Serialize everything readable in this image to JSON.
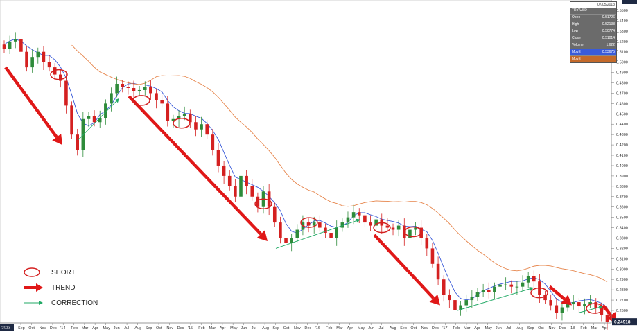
{
  "chart_data": {
    "type": "candlestick",
    "title": "",
    "pair": "TRY/USD",
    "ylim": [
      0.245,
      0.56
    ],
    "y_ticks": [
      "0.5500",
      "0.5400",
      "0.5300",
      "0.5200",
      "0.5100",
      "0.5000",
      "0.4900",
      "0.4800",
      "0.4700",
      "0.4600",
      "0.4500",
      "0.4400",
      "0.4300",
      "0.4200",
      "0.4100",
      "0.4000",
      "0.3900",
      "0.3800",
      "0.3700",
      "0.3600",
      "0.3500",
      "0.3400",
      "0.3300",
      "0.3200",
      "0.3100",
      "0.3000",
      "0.2900",
      "0.2800",
      "0.2700",
      "0.2600"
    ],
    "x_ticks": [
      "Sep",
      "Oct",
      "Nov",
      "Dec",
      "'14",
      "Feb",
      "Mar",
      "Apr",
      "May",
      "Jun",
      "Jul",
      "Aug",
      "Sep",
      "Oct",
      "Nov",
      "Dec",
      "'15",
      "Feb",
      "Mar",
      "Apr",
      "May",
      "Jun",
      "Jul",
      "Aug",
      "Sep",
      "Oct",
      "Nov",
      "Dec",
      "'16",
      "Feb",
      "Mar",
      "Apr",
      "May",
      "Jun",
      "Jul",
      "Aug",
      "Sep",
      "Oct",
      "Nov",
      "Dec",
      "'17",
      "Feb",
      "Mar",
      "Apr",
      "May",
      "Jun",
      "Jul",
      "Aug",
      "Sep",
      "Oct",
      "Nov",
      "Dec",
      "'18",
      "Feb",
      "Mar",
      "Apr"
    ],
    "x_left_label": "/2013",
    "current_price_label": "0.24918",
    "close_series": [
      0.513,
      0.52,
      0.522,
      0.51,
      0.495,
      0.505,
      0.51,
      0.5,
      0.495,
      0.488,
      0.482,
      0.458,
      0.43,
      0.415,
      0.445,
      0.448,
      0.442,
      0.446,
      0.46,
      0.47,
      0.479,
      0.476,
      0.475,
      0.472,
      0.473,
      0.476,
      0.47,
      0.463,
      0.46,
      0.443,
      0.445,
      0.448,
      0.45,
      0.442,
      0.435,
      0.44,
      0.43,
      0.415,
      0.4,
      0.39,
      0.38,
      0.37,
      0.39,
      0.38,
      0.37,
      0.36,
      0.375,
      0.36,
      0.345,
      0.33,
      0.325,
      0.33,
      0.338,
      0.345,
      0.342,
      0.345,
      0.34,
      0.335,
      0.33,
      0.34,
      0.345,
      0.35,
      0.355,
      0.352,
      0.345,
      0.342,
      0.348,
      0.342,
      0.34,
      0.338,
      0.342,
      0.33,
      0.338,
      0.34,
      0.33,
      0.32,
      0.305,
      0.29,
      0.275,
      0.27,
      0.26,
      0.265,
      0.27,
      0.273,
      0.278,
      0.28,
      0.278,
      0.283,
      0.285,
      0.285,
      0.283,
      0.283,
      0.287,
      0.293,
      0.288,
      0.275,
      0.27,
      0.265,
      0.258,
      0.263,
      0.266,
      0.268,
      0.264,
      0.266,
      0.268,
      0.262,
      0.256,
      0.249
    ]
  },
  "info_panel": {
    "date": "07/05/2013",
    "rows": [
      {
        "label": "TRY/USD",
        "value": ""
      },
      {
        "label": "Open",
        "value": "0.51726"
      },
      {
        "label": "High",
        "value": "0.52138"
      },
      {
        "label": "Low",
        "value": "0.50774"
      },
      {
        "label": "Close",
        "value": "0.51014"
      },
      {
        "label": "Volume",
        "value": "1,622"
      },
      {
        "label": "MovE",
        "value": "0.53675"
      },
      {
        "label": "MovE",
        "value": ""
      }
    ]
  },
  "legend": {
    "items": [
      {
        "label": "SHORT",
        "symbol": "red-ellipse"
      },
      {
        "label": "TREND",
        "symbol": "red-arrow"
      },
      {
        "label": "CORRECTION",
        "symbol": "green-arrow"
      }
    ]
  },
  "colors": {
    "up": "#2e8b3a",
    "down": "#d42020",
    "ma_fast": "#3a5bd9",
    "ma_slow": "#e6844a",
    "trend_arrow": "#e01818",
    "correction_arrow": "#22aa66",
    "short_ellipse": "#d42020"
  }
}
